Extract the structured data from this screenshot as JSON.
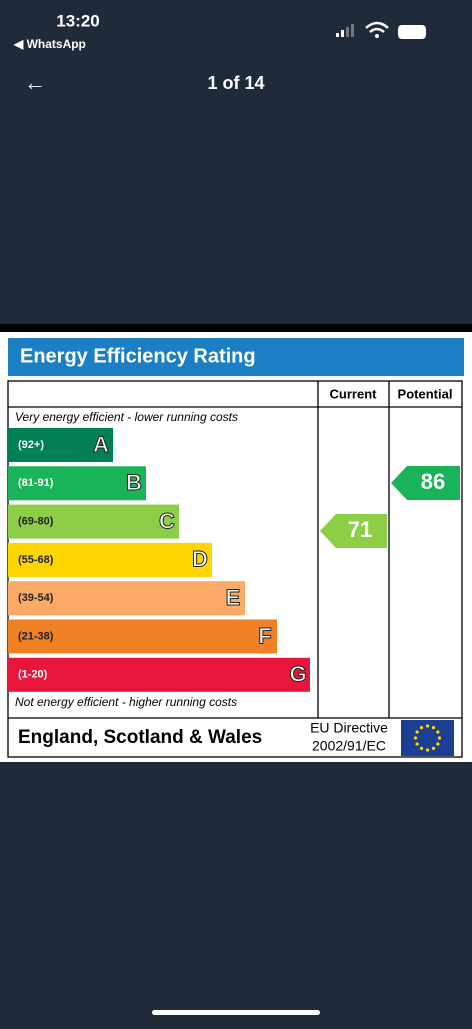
{
  "status_bar": {
    "time": "13:20",
    "back_app": "◀ WhatsApp"
  },
  "header": {
    "back": "←",
    "counter": "1 of 14"
  },
  "epc": {
    "title": "Energy Efficiency Rating",
    "columns": [
      "Current",
      "Potential"
    ],
    "top_note": "Very energy efficient - lower running costs",
    "bottom_note": "Not energy efficient - higher running costs",
    "bands": [
      {
        "range": "(92+)",
        "letter": "A"
      },
      {
        "range": "(81-91)",
        "letter": "B"
      },
      {
        "range": "(69-80)",
        "letter": "C"
      },
      {
        "range": "(55-68)",
        "letter": "D"
      },
      {
        "range": "(39-54)",
        "letter": "E"
      },
      {
        "range": "(21-38)",
        "letter": "F"
      },
      {
        "range": "(1-20)",
        "letter": "G"
      }
    ],
    "current": 71,
    "potential": 86,
    "footer": "England, Scotland & Wales",
    "directive": [
      "EU Directive",
      "2002/91/EC"
    ]
  }
}
